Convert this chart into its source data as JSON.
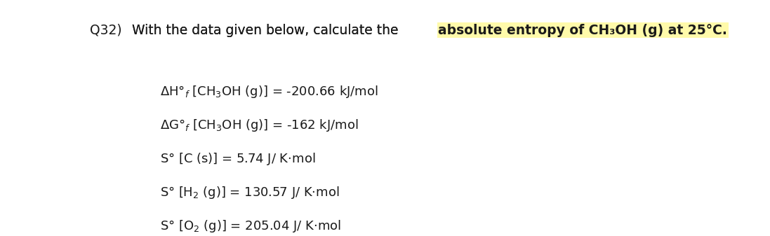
{
  "background_color": "#ffffff",
  "title_highlight_color": "#FFFAAA",
  "text_color": "#1a1a1a",
  "font_size_title": 13.5,
  "font_size_lines": 13.0,
  "title_q": "Q32)",
  "title_normal": "With the data given below, calculate the ",
  "title_bold": "absolute entropy of CH₃OH (g) at 25°C.",
  "line1_pre": "ΔH°",
  "line1_sub": "f",
  "line1_post": " [CH₃OH (g)] = -200.66 kJ/mol",
  "line2_pre": "ΔG°",
  "line2_sub": "f",
  "line2_post": " [CH₃OH (g)] = -162 kJ/mol",
  "line3": "S° [C (s)] = 5.74 J/ K·mol",
  "line4_pre": "S° [H",
  "line4_sub": "2",
  "line4_post": " (g)] = 130.57 J/ K·mol",
  "line5_pre": "S° [O",
  "line5_sub": "2",
  "line5_post": " (g)] = 205.04 J/ K·mol"
}
